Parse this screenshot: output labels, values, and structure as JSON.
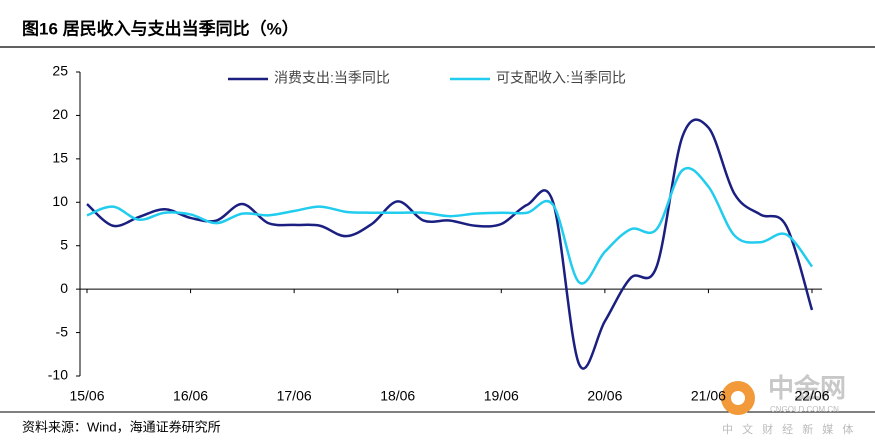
{
  "chart_data": {
    "type": "line",
    "title": "图16 居民收入与支出当季同比（%）",
    "source": "资料来源：Wind，海通证券研究所",
    "watermark": {
      "name": "中金网",
      "url": "CNGOLD.COM.CN",
      "tagline": "中 文 财 经 新 媒 体"
    },
    "categories": [
      "15/06",
      null,
      null,
      null,
      "16/06",
      null,
      null,
      null,
      "17/06",
      null,
      null,
      null,
      "18/06",
      null,
      null,
      null,
      "19/06",
      null,
      null,
      null,
      "20/06",
      null,
      null,
      null,
      "21/06",
      null,
      null,
      null,
      "22/06"
    ],
    "series": [
      {
        "name": "消费支出:当季同比",
        "color": "#1a1f80",
        "values": [
          9.8,
          7.3,
          8.3,
          9.2,
          8.2,
          7.9,
          9.8,
          7.6,
          7.4,
          7.3,
          6.1,
          7.5,
          10.1,
          7.9,
          7.9,
          7.3,
          7.5,
          9.7,
          10.0,
          -8.6,
          -3.7,
          1.3,
          2.6,
          17.6,
          18.6,
          11.0,
          8.6,
          7.3,
          -2.4
        ]
      },
      {
        "name": "可支配收入:当季同比",
        "color": "#22ccee",
        "values": [
          8.5,
          9.5,
          8.0,
          8.8,
          8.6,
          7.6,
          8.7,
          8.5,
          9.0,
          9.5,
          8.9,
          8.8,
          8.8,
          8.8,
          8.4,
          8.7,
          8.8,
          8.8,
          9.7,
          0.8,
          4.3,
          6.9,
          6.9,
          13.7,
          11.8,
          6.2,
          5.4,
          6.3,
          2.6
        ]
      }
    ],
    "ylim": [
      -10,
      25
    ],
    "yticks": [
      -10,
      -5,
      0,
      5,
      10,
      15,
      20,
      25
    ],
    "grid": false,
    "legend": "top"
  }
}
